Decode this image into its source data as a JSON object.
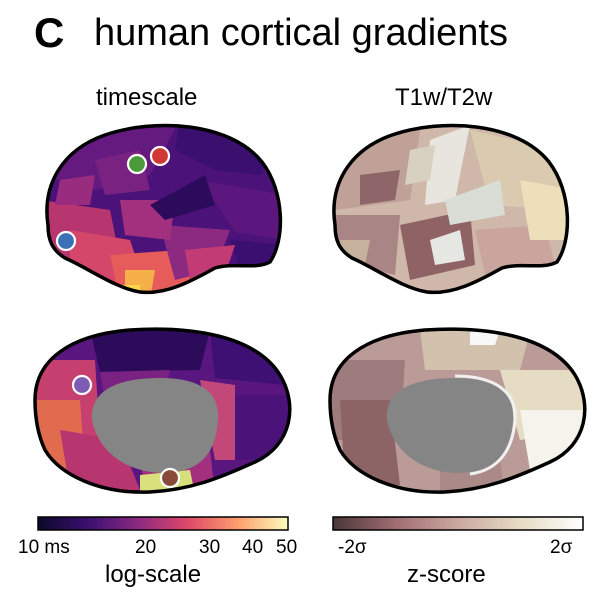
{
  "panel_label": "C",
  "title": "human cortical gradients",
  "columns": {
    "left_title": "timescale",
    "right_title": "T1w/T2w"
  },
  "colorbars": {
    "timescale": {
      "ticks": [
        "10 ms",
        "20",
        "30",
        "40",
        "50"
      ],
      "label": "log-scale",
      "colors": [
        "#0d0829",
        "#3b0f70",
        "#8c2981",
        "#de4968",
        "#fe9f6d",
        "#fcfdbf"
      ]
    },
    "t1w_t2w": {
      "ticks": [
        "-2σ",
        "2σ"
      ],
      "label": "z-score",
      "colors": [
        "#4a3638",
        "#a06d72",
        "#cba8a0",
        "#e6dcc4",
        "#ffffff"
      ]
    }
  },
  "markers": [
    {
      "name": "green-marker",
      "color": "#4a9a3c"
    },
    {
      "name": "red-marker",
      "color": "#d13a34"
    },
    {
      "name": "blue-marker",
      "color": "#3b6fb8"
    },
    {
      "name": "purple-marker",
      "color": "#7e5bb5"
    },
    {
      "name": "brown-marker",
      "color": "#8a4a3a"
    }
  ]
}
